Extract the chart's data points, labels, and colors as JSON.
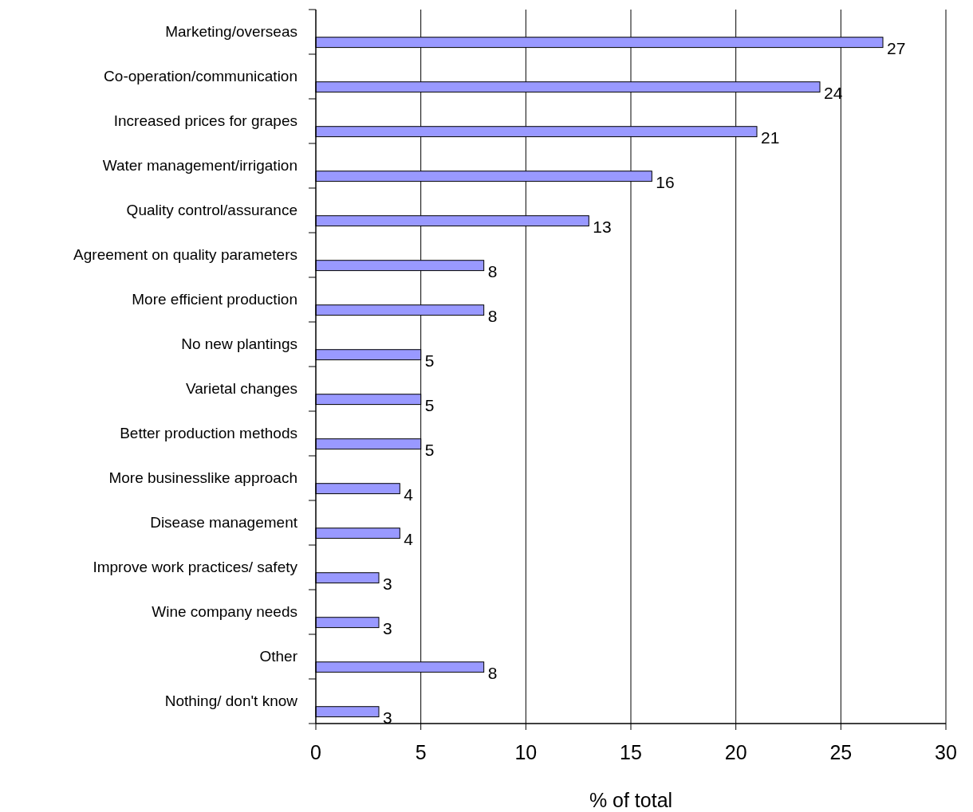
{
  "chart_data": {
    "type": "bar",
    "orientation": "horizontal",
    "xlabel": "% of total",
    "categories": [
      "Marketing/overseas",
      "Co-operation/communication",
      "Increased prices for grapes",
      "Water management/irrigation",
      "Quality control/assurance",
      "Agreement on quality parameters",
      "More efficient production",
      "No new plantings",
      "Varietal changes",
      "Better production methods",
      "More businesslike approach",
      "Disease management",
      "Improve work practices/ safety",
      "Wine company needs",
      "Other",
      "Nothing/ don't know"
    ],
    "values": [
      27,
      24,
      21,
      16,
      13,
      8,
      8,
      5,
      5,
      5,
      4,
      4,
      3,
      3,
      8,
      3
    ],
    "color": "#9999ff",
    "xlim": [
      0,
      30
    ],
    "xticks": [
      0,
      5,
      10,
      15,
      20,
      25,
      30
    ],
    "grid": "x",
    "data_labels": true
  }
}
